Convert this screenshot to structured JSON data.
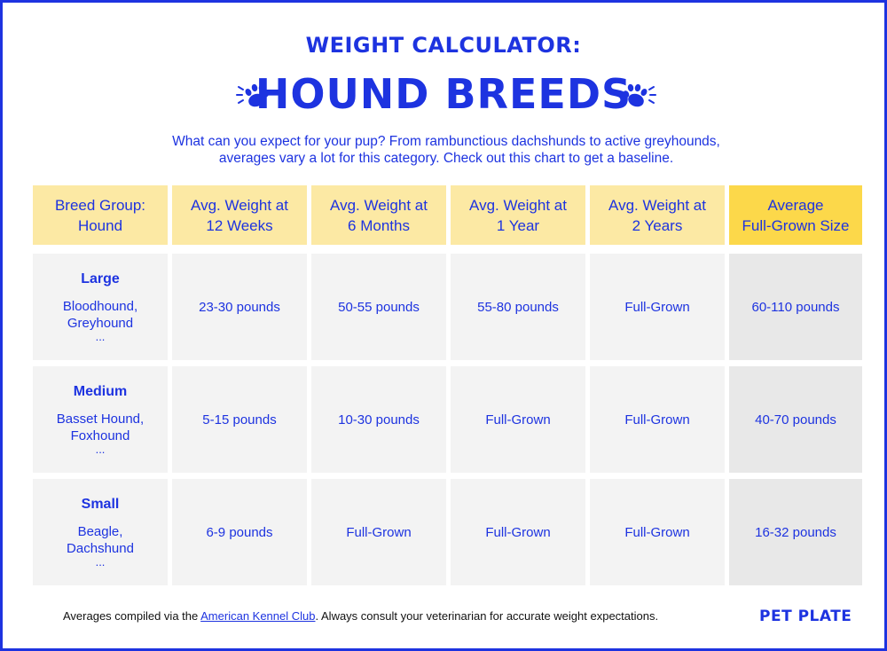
{
  "header": {
    "kicker": "WEIGHT CALCULATOR:",
    "title": "HOUND BREEDS",
    "intro_line1": "What can you expect for your pup? From rambunctious dachshunds to active greyhounds,",
    "intro_line2": "averages vary a lot for this category. Check out this chart to get a baseline.",
    "icons": [
      "paw-print-icon",
      "paw-print-icon"
    ]
  },
  "table": {
    "headers": [
      [
        "Breed Group:",
        "Hound"
      ],
      [
        "Avg. Weight at",
        "12 Weeks"
      ],
      [
        "Avg. Weight at",
        "6 Months"
      ],
      [
        "Avg. Weight at",
        "1 Year"
      ],
      [
        "Avg. Weight at",
        "2 Years"
      ],
      [
        "Average",
        "Full-Grown Size"
      ]
    ],
    "rows": [
      {
        "size": "Large",
        "examples": [
          "Bloodhound,",
          "Greyhound",
          "..."
        ],
        "values": [
          "23-30 pounds",
          "50-55 pounds",
          "55-80 pounds",
          "Full-Grown",
          "60-110 pounds"
        ]
      },
      {
        "size": "Medium",
        "examples": [
          "Basset Hound,",
          "Foxhound",
          "..."
        ],
        "values": [
          "5-15 pounds",
          "10-30 pounds",
          "Full-Grown",
          "Full-Grown",
          "40-70 pounds"
        ]
      },
      {
        "size": "Small",
        "examples": [
          "Beagle,",
          "Dachshund",
          "..."
        ],
        "values": [
          "6-9 pounds",
          "Full-Grown",
          "Full-Grown",
          "Full-Grown",
          "16-32 pounds"
        ]
      }
    ]
  },
  "footer": {
    "note_before": "Averages compiled via the ",
    "note_link": "American Kennel Club",
    "note_after": ". Always consult your veterinarian for accurate weight expectations.",
    "brand": "PET PLATE"
  },
  "colors": {
    "accent_blue": "#1d33e0",
    "header_yellow": "#fce9a4",
    "header_highlight": "#fcd84a",
    "cell_gray": "#f3f3f3",
    "cell_highlight_gray": "#e8e8e8"
  }
}
